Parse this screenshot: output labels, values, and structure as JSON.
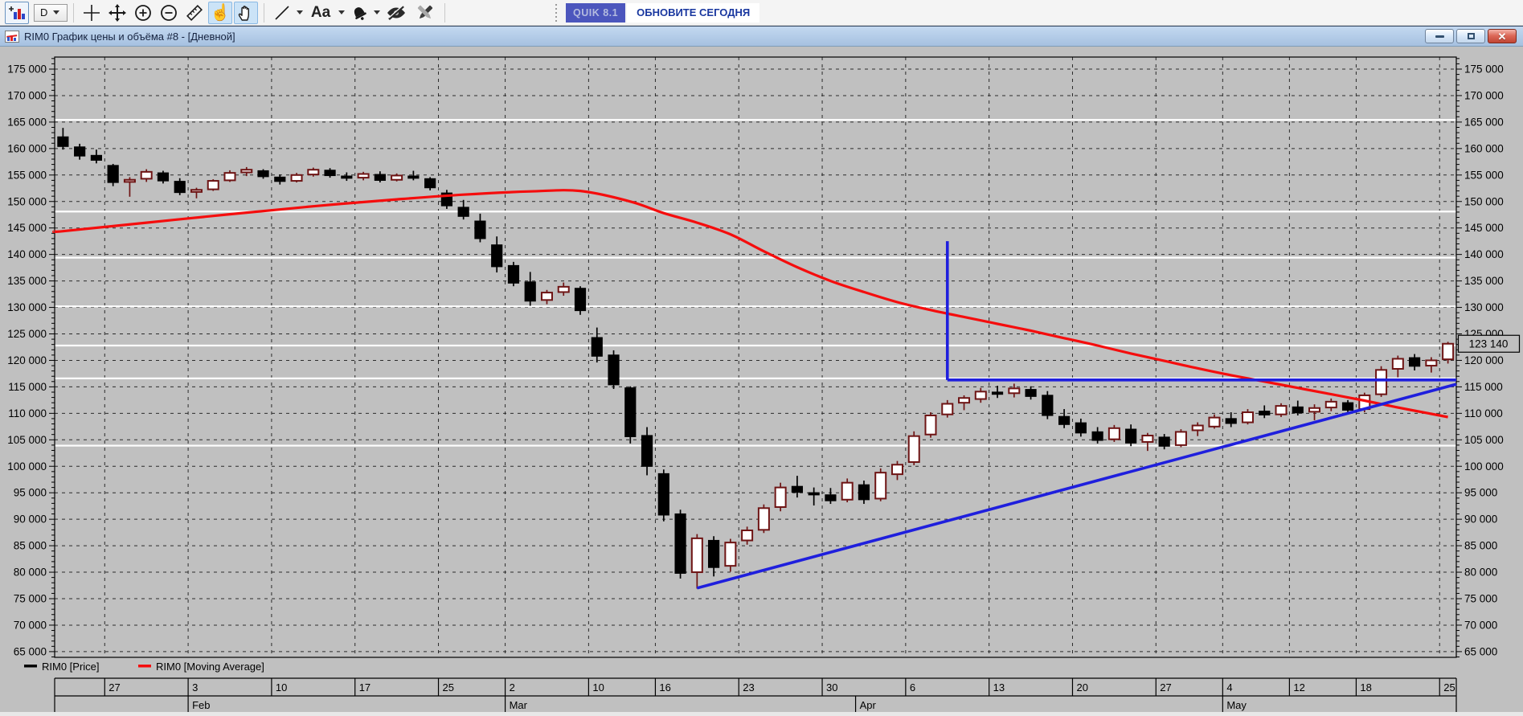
{
  "toolbar": {
    "timeframe": "D",
    "text_tool_label": "Aa",
    "promo": {
      "version": "QUIK 8.1",
      "message": "ОБНОВИТЕ СЕГОДНЯ"
    }
  },
  "window": {
    "title": "RIM0 График цены и объёма #8 - [Дневной]"
  },
  "chart_data": {
    "type": "candlestick",
    "instrument": "RIM0",
    "timeframe_label": "Дневной",
    "last_price": 123140,
    "y_axis": {
      "min": 65000,
      "max": 175000,
      "step": 5000,
      "minor_step": 1000,
      "sides": "both",
      "format": "space-thousands"
    },
    "x_axis": {
      "week_labels": [
        {
          "t": "27",
          "i": 3
        },
        {
          "t": "3",
          "i": 8
        },
        {
          "t": "10",
          "i": 13
        },
        {
          "t": "17",
          "i": 18
        },
        {
          "t": "25",
          "i": 23
        },
        {
          "t": "2",
          "i": 27
        },
        {
          "t": "10",
          "i": 32
        },
        {
          "t": "16",
          "i": 36
        },
        {
          "t": "23",
          "i": 41
        },
        {
          "t": "30",
          "i": 46
        },
        {
          "t": "6",
          "i": 51
        },
        {
          "t": "13",
          "i": 56
        },
        {
          "t": "20",
          "i": 61
        },
        {
          "t": "27",
          "i": 66
        },
        {
          "t": "4",
          "i": 70
        },
        {
          "t": "12",
          "i": 74
        },
        {
          "t": "18",
          "i": 78
        },
        {
          "t": "25",
          "i": 83
        }
      ],
      "month_labels": [
        {
          "t": "Feb",
          "i": 8
        },
        {
          "t": "Mar",
          "i": 27
        },
        {
          "t": "Apr",
          "i": 48
        },
        {
          "t": "May",
          "i": 70
        }
      ]
    },
    "legend": [
      {
        "label": "RIM0 [Price]",
        "color": "#000000"
      },
      {
        "label": "RIM0 [Moving Average]",
        "color": "#f50d0d"
      }
    ],
    "white_levels": [
      165400,
      148100,
      139400,
      130200,
      122800,
      116600,
      103900
    ],
    "candles": [
      [
        162200,
        163900,
        159800,
        160400
      ],
      [
        160300,
        160900,
        157900,
        158600
      ],
      [
        158700,
        159800,
        157200,
        157800
      ],
      [
        156800,
        157100,
        152900,
        153600
      ],
      [
        153700,
        154600,
        150900,
        154100
      ],
      [
        154300,
        156100,
        153700,
        155600
      ],
      [
        155400,
        155800,
        153400,
        153900
      ],
      [
        153800,
        154400,
        151200,
        151700
      ],
      [
        151900,
        152600,
        150600,
        152200
      ],
      [
        152300,
        154200,
        152000,
        153900
      ],
      [
        154000,
        155900,
        153700,
        155400
      ],
      [
        155500,
        156500,
        154800,
        156000
      ],
      [
        155800,
        156100,
        154300,
        154700
      ],
      [
        154600,
        155100,
        153200,
        153800
      ],
      [
        153900,
        155400,
        153600,
        155000
      ],
      [
        155100,
        156400,
        154700,
        156000
      ],
      [
        155900,
        156300,
        154500,
        154900
      ],
      [
        154800,
        155500,
        153900,
        154400
      ],
      [
        154500,
        155600,
        154000,
        155200
      ],
      [
        155100,
        155700,
        153600,
        154000
      ],
      [
        154100,
        155300,
        153800,
        154900
      ],
      [
        154800,
        155800,
        154000,
        154400
      ],
      [
        154300,
        154600,
        152100,
        152600
      ],
      [
        151600,
        152200,
        148600,
        149200
      ],
      [
        148900,
        150300,
        146600,
        147200
      ],
      [
        146300,
        147700,
        142300,
        143000
      ],
      [
        141800,
        143400,
        136600,
        137700
      ],
      [
        137900,
        138600,
        134000,
        134600
      ],
      [
        134800,
        136700,
        130300,
        131200
      ],
      [
        131400,
        133300,
        130600,
        132800
      ],
      [
        132900,
        134700,
        132200,
        133900
      ],
      [
        133600,
        134000,
        128600,
        129400
      ],
      [
        124300,
        126200,
        119600,
        120800
      ],
      [
        121000,
        121900,
        114600,
        115400
      ],
      [
        114800,
        115100,
        104300,
        105600
      ],
      [
        105800,
        107400,
        98300,
        100000
      ],
      [
        98600,
        99400,
        89600,
        90800
      ],
      [
        91000,
        91800,
        78800,
        79800
      ],
      [
        80000,
        87200,
        76900,
        86400
      ],
      [
        86000,
        86800,
        79200,
        80900
      ],
      [
        81200,
        86300,
        80100,
        85600
      ],
      [
        86000,
        88600,
        85200,
        87900
      ],
      [
        88000,
        92800,
        87400,
        92100
      ],
      [
        92300,
        96900,
        91500,
        96000
      ],
      [
        96200,
        98200,
        94100,
        95100
      ],
      [
        95000,
        96000,
        92600,
        94900
      ],
      [
        94600,
        95900,
        92900,
        93500
      ],
      [
        93700,
        97700,
        93200,
        96900
      ],
      [
        96500,
        97300,
        92900,
        93700
      ],
      [
        93900,
        99600,
        93400,
        98800
      ],
      [
        98500,
        101000,
        97400,
        100300
      ],
      [
        100800,
        106600,
        100200,
        105700
      ],
      [
        106000,
        110200,
        105400,
        109600
      ],
      [
        109800,
        112500,
        109200,
        111800
      ],
      [
        112000,
        113400,
        110600,
        112900
      ],
      [
        112700,
        114800,
        112000,
        114100
      ],
      [
        114000,
        115200,
        112900,
        113600
      ],
      [
        113800,
        115600,
        113000,
        114700
      ],
      [
        114500,
        115100,
        112600,
        113200
      ],
      [
        113400,
        114200,
        108900,
        109600
      ],
      [
        109400,
        110800,
        107200,
        107900
      ],
      [
        108200,
        109000,
        105600,
        106300
      ],
      [
        106500,
        107400,
        104300,
        104900
      ],
      [
        105100,
        107800,
        104600,
        107200
      ],
      [
        107000,
        107900,
        103800,
        104400
      ],
      [
        104600,
        106300,
        102900,
        105800
      ],
      [
        105500,
        106100,
        103200,
        103800
      ],
      [
        104000,
        107000,
        103600,
        106500
      ],
      [
        106800,
        108300,
        105700,
        107700
      ],
      [
        107500,
        109800,
        107100,
        109200
      ],
      [
        109000,
        110200,
        107400,
        108100
      ],
      [
        108300,
        110800,
        107900,
        110200
      ],
      [
        110400,
        111500,
        109100,
        109700
      ],
      [
        109800,
        111900,
        109300,
        111400
      ],
      [
        111200,
        112400,
        109600,
        110100
      ],
      [
        110300,
        111700,
        108700,
        111000
      ],
      [
        111100,
        112800,
        110400,
        112200
      ],
      [
        112000,
        112500,
        109900,
        110600
      ],
      [
        110800,
        113900,
        110200,
        113400
      ],
      [
        113600,
        118900,
        113100,
        118200
      ],
      [
        118400,
        120900,
        116800,
        120300
      ],
      [
        120500,
        121200,
        118100,
        118900
      ],
      [
        119000,
        120600,
        117700,
        120000
      ],
      [
        120200,
        123500,
        119400,
        123140
      ]
    ],
    "ma_points": [
      [
        0,
        144400
      ],
      [
        5,
        146000
      ],
      [
        10,
        147600
      ],
      [
        15,
        149100
      ],
      [
        20,
        150400
      ],
      [
        24,
        151300
      ],
      [
        28,
        151900
      ],
      [
        31,
        152000
      ],
      [
        34,
        150000
      ],
      [
        36,
        147800
      ],
      [
        38,
        146000
      ],
      [
        40,
        143800
      ],
      [
        42,
        140600
      ],
      [
        44,
        137600
      ],
      [
        46,
        135000
      ],
      [
        48,
        132900
      ],
      [
        50,
        131000
      ],
      [
        52,
        129500
      ],
      [
        54,
        128200
      ],
      [
        56,
        126900
      ],
      [
        58,
        125600
      ],
      [
        60,
        124200
      ],
      [
        62,
        122800
      ],
      [
        64,
        121300
      ],
      [
        66,
        119900
      ],
      [
        68,
        118500
      ],
      [
        70,
        117200
      ],
      [
        72,
        116000
      ],
      [
        74,
        114800
      ],
      [
        76,
        113600
      ],
      [
        78,
        112400
      ],
      [
        80,
        111100
      ],
      [
        82,
        109900
      ],
      [
        83,
        109300
      ]
    ],
    "drawings": {
      "color": "#1f1fdd",
      "vertical_line": {
        "index": 53,
        "from": 142500,
        "to": 116300
      },
      "horizontal_line": {
        "from_index": 53,
        "level": 116300
      },
      "trend_line": {
        "from_index": 38,
        "from_price": 77000,
        "to_price": 115500
      }
    },
    "colors": {
      "background": "#c0c0c0",
      "grid": "#2b2b2b",
      "white_line": "#ffffff",
      "up_fill": "#ffffff",
      "up_stroke": "#6e1414",
      "down_fill": "#000000",
      "ma": "#f50d0d",
      "drawing": "#1f1fdd"
    }
  }
}
